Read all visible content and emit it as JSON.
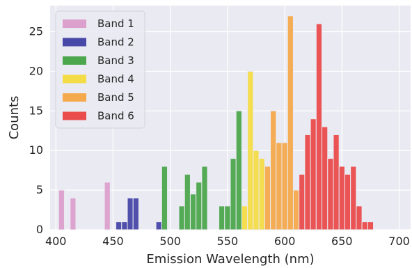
{
  "chart_data": {
    "type": "bar",
    "xlabel": "Emission Wavelength (nm)",
    "ylabel": "Counts",
    "xlim": [
      395,
      710
    ],
    "ylim": [
      0,
      28.3
    ],
    "xticks": [
      400,
      450,
      500,
      550,
      600,
      650,
      700
    ],
    "yticks": [
      0,
      5,
      10,
      15,
      20,
      25
    ],
    "bin_width": 5,
    "grid": true,
    "legend_position": "top-left",
    "background_color": "#eaeaf2",
    "series": [
      {
        "name": "Band 1",
        "color": "#dca0cc",
        "bins": [
          {
            "x": 405,
            "count": 5
          },
          {
            "x": 415,
            "count": 4
          },
          {
            "x": 445,
            "count": 6
          }
        ]
      },
      {
        "name": "Band 2",
        "color": "#4848a8",
        "bins": [
          {
            "x": 455,
            "count": 1
          },
          {
            "x": 460,
            "count": 1
          },
          {
            "x": 465,
            "count": 4
          },
          {
            "x": 470,
            "count": 4
          },
          {
            "x": 490,
            "count": 1
          }
        ]
      },
      {
        "name": "Band 3",
        "color": "#4ca64c",
        "bins": [
          {
            "x": 495,
            "count": 8
          },
          {
            "x": 510,
            "count": 3
          },
          {
            "x": 515,
            "count": 7
          },
          {
            "x": 520,
            "count": 4.5
          },
          {
            "x": 525,
            "count": 6
          },
          {
            "x": 530,
            "count": 8
          },
          {
            "x": 545,
            "count": 3
          },
          {
            "x": 550,
            "count": 3
          },
          {
            "x": 555,
            "count": 9
          },
          {
            "x": 560,
            "count": 15
          }
        ]
      },
      {
        "name": "Band 4",
        "color": "#f4dc46",
        "bins": [
          {
            "x": 565,
            "count": 3
          },
          {
            "x": 570,
            "count": 20
          },
          {
            "x": 575,
            "count": 10
          },
          {
            "x": 580,
            "count": 9
          }
        ]
      },
      {
        "name": "Band 5",
        "color": "#f4a94c",
        "bins": [
          {
            "x": 585,
            "count": 8
          },
          {
            "x": 590,
            "count": 15
          },
          {
            "x": 595,
            "count": 11
          },
          {
            "x": 600,
            "count": 11
          },
          {
            "x": 605,
            "count": 27
          },
          {
            "x": 610,
            "count": 5
          }
        ]
      },
      {
        "name": "Band 6",
        "color": "#ea4c4c",
        "bins": [
          {
            "x": 615,
            "count": 7
          },
          {
            "x": 620,
            "count": 12
          },
          {
            "x": 625,
            "count": 14
          },
          {
            "x": 630,
            "count": 26
          },
          {
            "x": 635,
            "count": 13
          },
          {
            "x": 640,
            "count": 9
          },
          {
            "x": 645,
            "count": 12
          },
          {
            "x": 650,
            "count": 8
          },
          {
            "x": 655,
            "count": 7
          },
          {
            "x": 660,
            "count": 8
          },
          {
            "x": 665,
            "count": 3
          },
          {
            "x": 670,
            "count": 1
          },
          {
            "x": 675,
            "count": 1
          }
        ]
      }
    ]
  }
}
